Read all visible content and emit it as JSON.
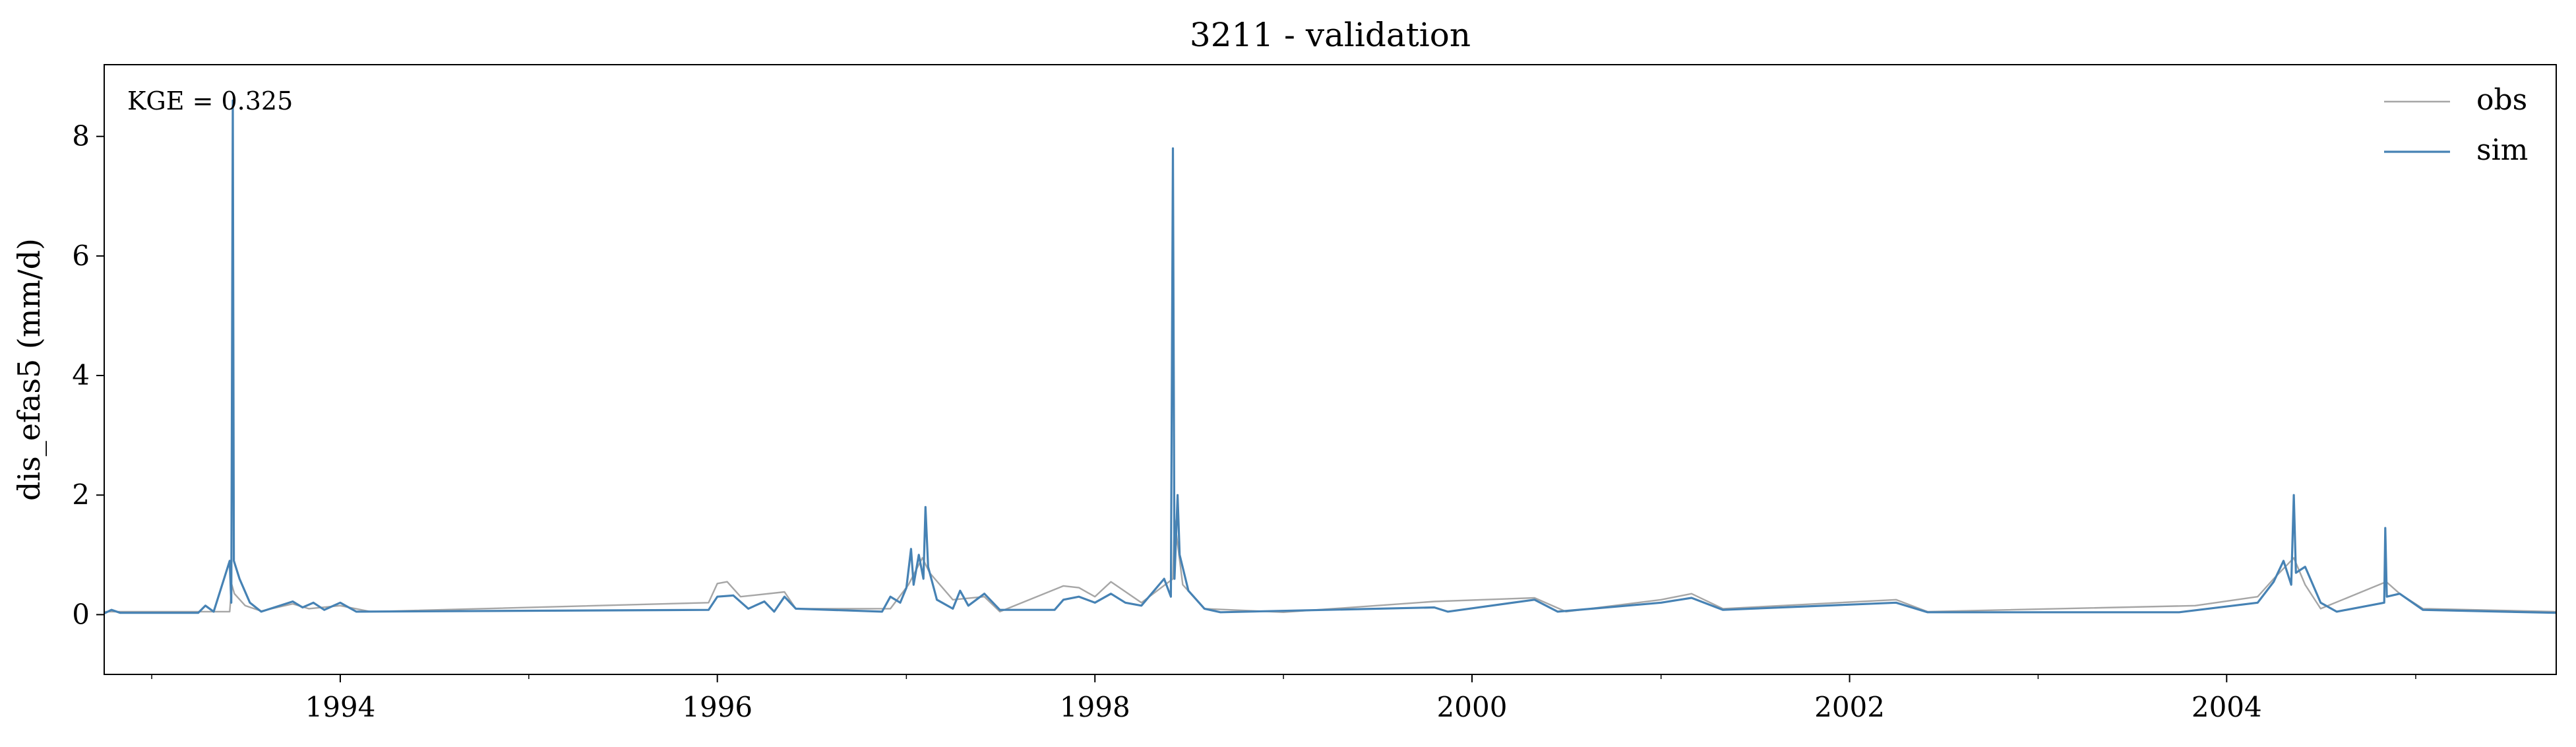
{
  "chart_data": {
    "type": "line",
    "title": "3211 - validation",
    "xlabel": "",
    "ylabel": "dis_efas5 (mm/d)",
    "annotation": "KGE = 0.325",
    "xlim": [
      "1992-10-01",
      "2005-09-30"
    ],
    "ylim": [
      -1,
      9.2
    ],
    "x_ticks": [
      "1994",
      "1996",
      "1998",
      "2000",
      "2002",
      "2004"
    ],
    "y_ticks": [
      "0",
      "2",
      "4",
      "6",
      "8"
    ],
    "grid": false,
    "legend_position": "upper right",
    "series": [
      {
        "name": "obs",
        "color": "#a6a6a6",
        "points": [
          [
            "1992-10-01",
            0.05
          ],
          [
            "1993-06-01",
            0.05
          ],
          [
            "1993-06-05",
            0.5
          ],
          [
            "1993-06-10",
            0.35
          ],
          [
            "1993-07-01",
            0.15
          ],
          [
            "1993-08-01",
            0.06
          ],
          [
            "1993-10-01",
            0.18
          ],
          [
            "1993-11-01",
            0.1
          ],
          [
            "1994-01-01",
            0.15
          ],
          [
            "1994-03-01",
            0.05
          ],
          [
            "1995-12-15",
            0.2
          ],
          [
            "1996-01-01",
            0.52
          ],
          [
            "1996-01-20",
            0.55
          ],
          [
            "1996-02-15",
            0.3
          ],
          [
            "1996-05-10",
            0.38
          ],
          [
            "1996-06-01",
            0.1
          ],
          [
            "1996-12-01",
            0.1
          ],
          [
            "1997-01-05",
            0.5
          ],
          [
            "1997-02-01",
            0.95
          ],
          [
            "1997-02-15",
            0.7
          ],
          [
            "1997-04-01",
            0.25
          ],
          [
            "1997-06-01",
            0.3
          ],
          [
            "1997-07-01",
            0.05
          ],
          [
            "1997-11-01",
            0.48
          ],
          [
            "1997-12-01",
            0.45
          ],
          [
            "1998-01-01",
            0.3
          ],
          [
            "1998-02-01",
            0.55
          ],
          [
            "1998-04-01",
            0.2
          ],
          [
            "1998-06-01",
            0.6
          ],
          [
            "1998-06-04",
            1.6
          ],
          [
            "1998-06-20",
            0.5
          ],
          [
            "1998-08-01",
            0.1
          ],
          [
            "1999-01-01",
            0.04
          ],
          [
            "1999-10-20",
            0.22
          ],
          [
            "2000-05-01",
            0.28
          ],
          [
            "2000-07-01",
            0.05
          ],
          [
            "2001-01-01",
            0.25
          ],
          [
            "2001-03-01",
            0.35
          ],
          [
            "2001-05-01",
            0.1
          ],
          [
            "2002-04-01",
            0.25
          ],
          [
            "2002-06-01",
            0.05
          ],
          [
            "2003-11-01",
            0.15
          ],
          [
            "2004-03-01",
            0.3
          ],
          [
            "2004-04-01",
            0.6
          ],
          [
            "2004-05-10",
            0.95
          ],
          [
            "2004-06-01",
            0.5
          ],
          [
            "2004-07-01",
            0.1
          ],
          [
            "2004-11-05",
            0.55
          ],
          [
            "2004-12-01",
            0.35
          ],
          [
            "2005-01-15",
            0.1
          ],
          [
            "2005-09-30",
            0.05
          ]
        ]
      },
      {
        "name": "sim",
        "color": "#4682b4",
        "points": [
          [
            "1992-10-01",
            0.02
          ],
          [
            "1992-10-15",
            0.08
          ],
          [
            "1992-11-01",
            0.03
          ],
          [
            "1993-04-01",
            0.03
          ],
          [
            "1993-04-15",
            0.15
          ],
          [
            "1993-05-01",
            0.05
          ],
          [
            "1993-06-01",
            0.9
          ],
          [
            "1993-06-04",
            0.2
          ],
          [
            "1993-06-07",
            8.6
          ],
          [
            "1993-06-09",
            0.9
          ],
          [
            "1993-06-20",
            0.6
          ],
          [
            "1993-07-10",
            0.2
          ],
          [
            "1993-08-01",
            0.05
          ],
          [
            "1993-10-01",
            0.22
          ],
          [
            "1993-10-20",
            0.12
          ],
          [
            "1993-11-10",
            0.2
          ],
          [
            "1993-12-01",
            0.08
          ],
          [
            "1994-01-01",
            0.2
          ],
          [
            "1994-02-01",
            0.05
          ],
          [
            "1995-12-15",
            0.08
          ],
          [
            "1996-01-01",
            0.3
          ],
          [
            "1996-02-01",
            0.32
          ],
          [
            "1996-03-01",
            0.1
          ],
          [
            "1996-04-01",
            0.22
          ],
          [
            "1996-04-20",
            0.05
          ],
          [
            "1996-05-10",
            0.3
          ],
          [
            "1996-06-01",
            0.1
          ],
          [
            "1996-11-15",
            0.05
          ],
          [
            "1996-12-01",
            0.3
          ],
          [
            "1996-12-20",
            0.2
          ],
          [
            "1997-01-01",
            0.45
          ],
          [
            "1997-01-10",
            1.1
          ],
          [
            "1997-01-15",
            0.5
          ],
          [
            "1997-01-25",
            1.0
          ],
          [
            "1997-02-03",
            0.6
          ],
          [
            "1997-02-07",
            1.8
          ],
          [
            "1997-02-12",
            0.8
          ],
          [
            "1997-03-01",
            0.25
          ],
          [
            "1997-04-01",
            0.1
          ],
          [
            "1997-04-15",
            0.4
          ],
          [
            "1997-05-01",
            0.15
          ],
          [
            "1997-06-01",
            0.35
          ],
          [
            "1997-07-01",
            0.08
          ],
          [
            "1997-10-15",
            0.08
          ],
          [
            "1997-11-01",
            0.25
          ],
          [
            "1997-12-01",
            0.3
          ],
          [
            "1998-01-01",
            0.2
          ],
          [
            "1998-02-01",
            0.35
          ],
          [
            "1998-03-01",
            0.2
          ],
          [
            "1998-04-01",
            0.15
          ],
          [
            "1998-05-15",
            0.6
          ],
          [
            "1998-05-28",
            0.3
          ],
          [
            "1998-06-01",
            7.8
          ],
          [
            "1998-06-04",
            0.6
          ],
          [
            "1998-06-10",
            2.0
          ],
          [
            "1998-06-14",
            1.0
          ],
          [
            "1998-07-01",
            0.4
          ],
          [
            "1998-08-01",
            0.1
          ],
          [
            "1998-09-01",
            0.04
          ],
          [
            "1999-10-20",
            0.12
          ],
          [
            "1999-11-15",
            0.05
          ],
          [
            "2000-05-01",
            0.25
          ],
          [
            "2000-06-15",
            0.05
          ],
          [
            "2001-01-01",
            0.2
          ],
          [
            "2001-03-01",
            0.28
          ],
          [
            "2001-05-01",
            0.08
          ],
          [
            "2002-04-01",
            0.2
          ],
          [
            "2002-06-01",
            0.04
          ],
          [
            "2003-10-01",
            0.04
          ],
          [
            "2004-03-01",
            0.2
          ],
          [
            "2004-04-01",
            0.55
          ],
          [
            "2004-04-20",
            0.9
          ],
          [
            "2004-05-05",
            0.5
          ],
          [
            "2004-05-10",
            2.0
          ],
          [
            "2004-05-14",
            0.7
          ],
          [
            "2004-06-01",
            0.8
          ],
          [
            "2004-07-01",
            0.2
          ],
          [
            "2004-08-01",
            0.05
          ],
          [
            "2004-11-01",
            0.2
          ],
          [
            "2004-11-03",
            1.45
          ],
          [
            "2004-11-06",
            0.3
          ],
          [
            "2004-12-01",
            0.35
          ],
          [
            "2005-01-15",
            0.08
          ],
          [
            "2005-09-30",
            0.03
          ]
        ]
      }
    ]
  }
}
